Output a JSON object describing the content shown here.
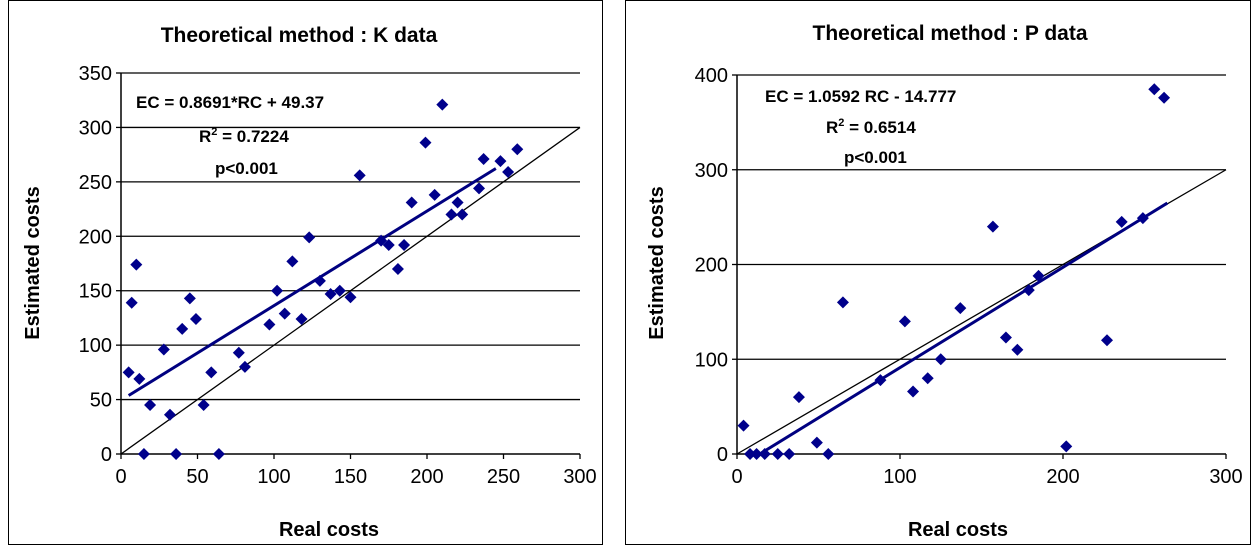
{
  "chart_data": [
    {
      "type": "scatter",
      "title": "Theoretical method : K data",
      "xlabel": "Real costs",
      "ylabel": "Estimated costs",
      "xlim": [
        0,
        300
      ],
      "ylim": [
        0,
        350
      ],
      "xticks": [
        "0",
        "50",
        "100",
        "150",
        "200",
        "250",
        "300"
      ],
      "yticks": [
        "0",
        "50",
        "100",
        "150",
        "200",
        "250",
        "300",
        "350"
      ],
      "annotations": [
        "EC = 0.8691*RC + 49.37",
        "R",
        "2",
        " = 0.7224",
        "p<0.001"
      ],
      "regression": {
        "slope": 0.8691,
        "intercept": 49.37,
        "x_range": [
          5,
          245
        ]
      },
      "identity_line": true,
      "points": [
        [
          5,
          75
        ],
        [
          7,
          139
        ],
        [
          10,
          174
        ],
        [
          12,
          69
        ],
        [
          15,
          0
        ],
        [
          19,
          45
        ],
        [
          28,
          96
        ],
        [
          32,
          36
        ],
        [
          36,
          0
        ],
        [
          40,
          115
        ],
        [
          45,
          143
        ],
        [
          49,
          124
        ],
        [
          54,
          45
        ],
        [
          59,
          75
        ],
        [
          64,
          0
        ],
        [
          77,
          93
        ],
        [
          81,
          80
        ],
        [
          97,
          119
        ],
        [
          102,
          150
        ],
        [
          107,
          129
        ],
        [
          112,
          177
        ],
        [
          118,
          124
        ],
        [
          123,
          199
        ],
        [
          130,
          159
        ],
        [
          137,
          147
        ],
        [
          143,
          150
        ],
        [
          150,
          144
        ],
        [
          156,
          256
        ],
        [
          170,
          196
        ],
        [
          175,
          192
        ],
        [
          181,
          170
        ],
        [
          185,
          192
        ],
        [
          190,
          231
        ],
        [
          199,
          286
        ],
        [
          205,
          238
        ],
        [
          210,
          321
        ],
        [
          216,
          220
        ],
        [
          220,
          231
        ],
        [
          223,
          220
        ],
        [
          234,
          244
        ],
        [
          237,
          271
        ],
        [
          248,
          269
        ],
        [
          253,
          259
        ],
        [
          259,
          280
        ]
      ]
    },
    {
      "type": "scatter",
      "title": "Theoretical method : P data",
      "xlabel": "Real costs",
      "ylabel": "Estimated costs",
      "xlim": [
        0,
        300
      ],
      "ylim": [
        0,
        400
      ],
      "xticks": [
        "0",
        "100",
        "200",
        "300"
      ],
      "yticks": [
        "0",
        "100",
        "200",
        "300",
        "400"
      ],
      "annotations": [
        "EC = 1.0592 RC - 14.777",
        "R",
        "2",
        " = 0.6514",
        "p<0.001"
      ],
      "regression": {
        "slope": 1.0592,
        "intercept": -14.777,
        "x_range": [
          15,
          264
        ]
      },
      "identity_line": true,
      "points": [
        [
          4,
          30
        ],
        [
          8,
          0
        ],
        [
          12,
          0
        ],
        [
          17,
          0
        ],
        [
          25,
          0
        ],
        [
          32,
          0
        ],
        [
          38,
          60
        ],
        [
          49,
          12
        ],
        [
          56,
          0
        ],
        [
          65,
          160
        ],
        [
          88,
          78
        ],
        [
          103,
          140
        ],
        [
          108,
          66
        ],
        [
          117,
          80
        ],
        [
          125,
          100
        ],
        [
          137,
          154
        ],
        [
          157,
          240
        ],
        [
          165,
          123
        ],
        [
          172,
          110
        ],
        [
          179,
          173
        ],
        [
          185,
          188
        ],
        [
          202,
          8
        ],
        [
          227,
          120
        ],
        [
          236,
          245
        ],
        [
          249,
          249
        ],
        [
          256,
          385
        ],
        [
          262,
          376
        ]
      ]
    }
  ],
  "colors": {
    "marker": "#00008b",
    "regression": "#000080",
    "identity": "#000000",
    "grid": "#000000"
  }
}
